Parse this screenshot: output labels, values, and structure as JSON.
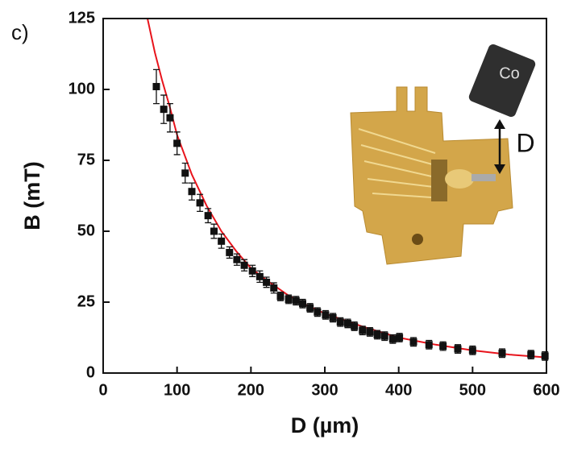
{
  "chart_data": {
    "type": "scatter",
    "panel_label": "c)",
    "xlabel": "D (µm)",
    "ylabel": "B (mT)",
    "xlim": [
      0,
      600
    ],
    "ylim": [
      0,
      125
    ],
    "xticks": [
      0,
      100,
      200,
      300,
      400,
      500,
      600
    ],
    "yticks": [
      0,
      25,
      50,
      75,
      100,
      125
    ],
    "series": [
      {
        "type": "scatter",
        "color": "#111111",
        "x": [
          72,
          82,
          90.5,
          100,
          111,
          120,
          131,
          142,
          150,
          160,
          171,
          181,
          191,
          202,
          212,
          221,
          231,
          240,
          251,
          261,
          270,
          280,
          290,
          301,
          311,
          321,
          331,
          340,
          351,
          361,
          371,
          381,
          392,
          401,
          420,
          441,
          460,
          480,
          500,
          540,
          579,
          598
        ],
        "values": [
          101,
          93,
          90,
          81,
          70.5,
          64,
          60,
          55.5,
          50,
          46.5,
          42.5,
          40,
          38,
          36,
          34,
          32,
          30,
          27,
          26,
          25.5,
          24.5,
          23,
          21.5,
          20.5,
          19.5,
          18,
          17.5,
          16.5,
          15,
          14.5,
          13.5,
          13,
          12,
          12.5,
          11,
          10,
          9.5,
          8.5,
          8,
          7,
          6.5,
          6
        ],
        "errors": [
          6,
          5,
          5,
          4,
          3.5,
          3,
          3,
          2.5,
          2.5,
          2.5,
          2,
          2,
          2,
          2,
          2,
          1.8,
          1.8,
          1.5,
          1.5,
          1.5,
          1.5,
          1.5,
          1.5,
          1.5,
          1.5,
          1.5,
          1.5,
          1.5,
          1.5,
          1.5,
          1.5,
          1.5,
          1.5,
          1.5,
          1.5,
          1.5,
          1.5,
          1.5,
          1.5,
          1.5,
          1.5,
          1.5
        ]
      },
      {
        "type": "line",
        "color": "#e8141c",
        "x": [
          60,
          70,
          80,
          90,
          100,
          120,
          140,
          160,
          180,
          200,
          225,
          250,
          275,
          300,
          350,
          400,
          450,
          500,
          550,
          600
        ],
        "values": [
          125,
          113,
          103,
          94,
          84,
          70,
          59,
          50,
          43,
          37,
          32,
          27.5,
          24,
          21,
          16.5,
          12.5,
          10,
          8,
          6.5,
          5.5
        ]
      }
    ],
    "annotations": [
      "Co",
      "D"
    ]
  }
}
